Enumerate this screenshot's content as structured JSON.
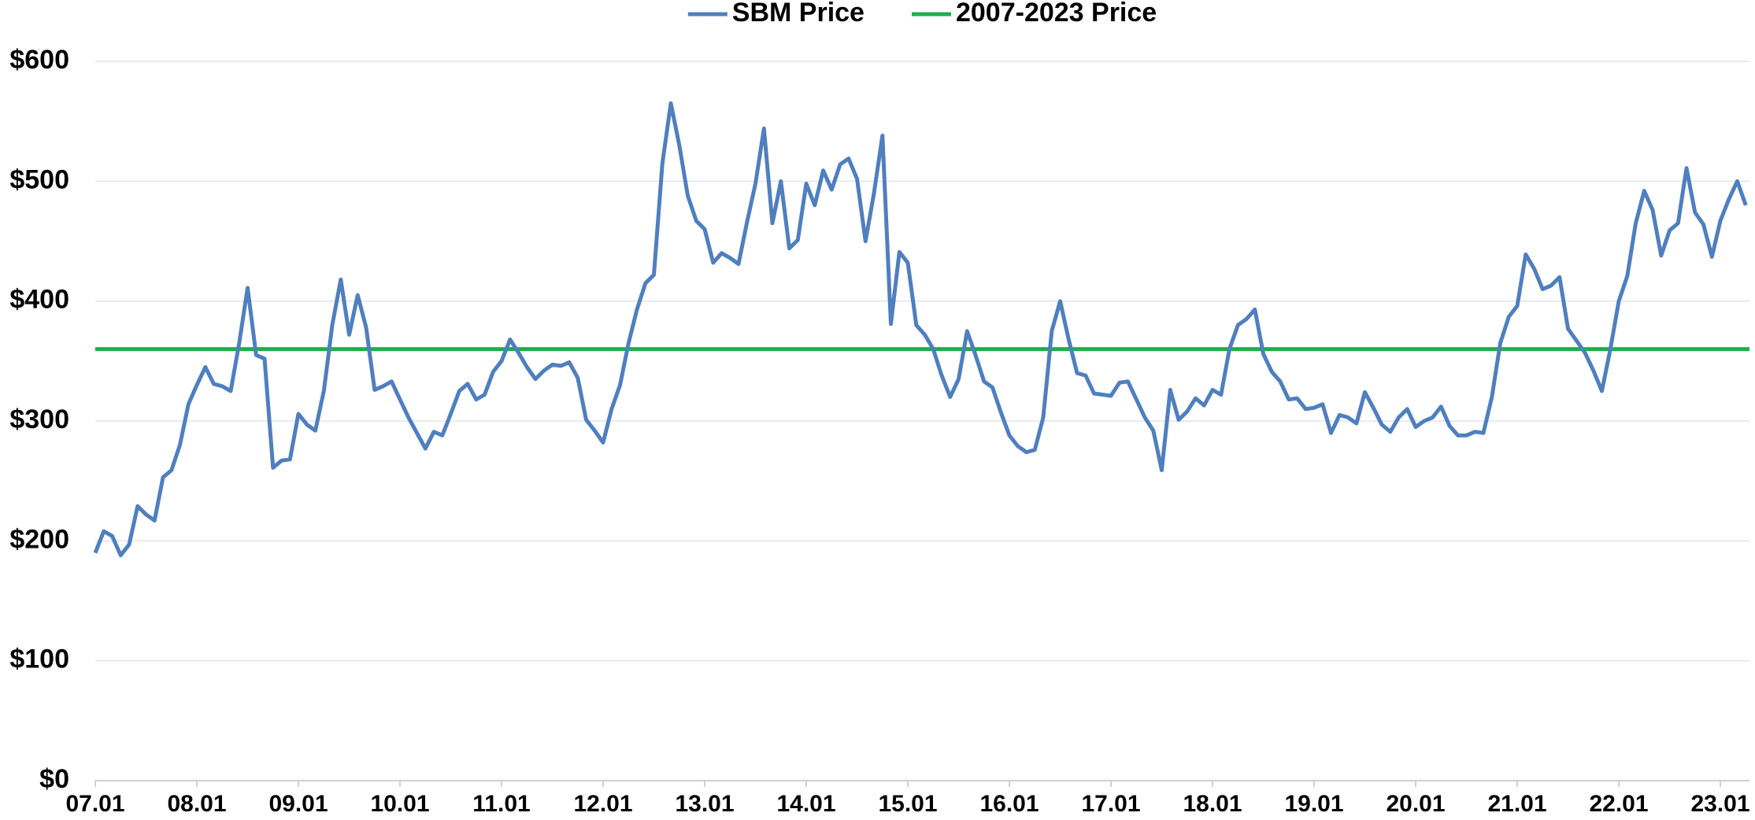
{
  "chart_data": {
    "type": "line",
    "categories": [
      "07.01",
      null,
      null,
      null,
      null,
      null,
      null,
      null,
      null,
      null,
      null,
      null,
      "08.01",
      null,
      null,
      null,
      null,
      null,
      null,
      null,
      null,
      null,
      null,
      null,
      "09.01",
      null,
      null,
      null,
      null,
      null,
      null,
      null,
      null,
      null,
      null,
      null,
      "10.01",
      null,
      null,
      null,
      null,
      null,
      null,
      null,
      null,
      null,
      null,
      null,
      "11.01",
      null,
      null,
      null,
      null,
      null,
      null,
      null,
      null,
      null,
      null,
      null,
      "12.01",
      null,
      null,
      null,
      null,
      null,
      null,
      null,
      null,
      null,
      null,
      null,
      "13.01",
      null,
      null,
      null,
      null,
      null,
      null,
      null,
      null,
      null,
      null,
      null,
      "14.01",
      null,
      null,
      null,
      null,
      null,
      null,
      null,
      null,
      null,
      null,
      null,
      "15.01",
      null,
      null,
      null,
      null,
      null,
      null,
      null,
      null,
      null,
      null,
      null,
      "16.01",
      null,
      null,
      null,
      null,
      null,
      null,
      null,
      null,
      null,
      null,
      null,
      "17.01",
      null,
      null,
      null,
      null,
      null,
      null,
      null,
      null,
      null,
      null,
      null,
      "18.01",
      null,
      null,
      null,
      null,
      null,
      null,
      null,
      null,
      null,
      null,
      null,
      "19.01",
      null,
      null,
      null,
      null,
      null,
      null,
      null,
      null,
      null,
      null,
      null,
      "20.01",
      null,
      null,
      null,
      null,
      null,
      null,
      null,
      null,
      null,
      null,
      null,
      "21.01",
      null,
      null,
      null,
      null,
      null,
      null,
      null,
      null,
      null,
      null,
      null,
      "22.01",
      null,
      null,
      null,
      null,
      null,
      null,
      null,
      null,
      null,
      null,
      null,
      "23.01",
      null,
      null,
      null
    ],
    "series": [
      {
        "name": "SBM Price",
        "color": "#4f7fbf",
        "values": [
          190,
          208,
          204,
          188,
          197,
          229,
          222,
          217,
          253,
          259,
          280,
          314,
          330,
          345,
          331,
          329,
          325,
          365,
          411,
          355,
          352,
          261,
          267,
          268,
          306,
          297,
          292,
          325,
          380,
          418,
          372,
          405,
          378,
          326,
          329,
          333,
          318,
          303,
          290,
          277,
          291,
          288,
          306,
          325,
          331,
          318,
          322,
          341,
          350,
          368,
          357,
          345,
          335,
          342,
          347,
          346,
          349,
          336,
          301,
          292,
          282,
          310,
          330,
          365,
          393,
          415,
          422,
          515,
          565,
          530,
          488,
          467,
          460,
          432,
          440,
          436,
          431,
          466,
          498,
          544,
          465,
          500,
          444,
          451,
          498,
          480,
          509,
          493,
          514,
          519,
          502,
          450,
          490,
          538,
          381,
          441,
          432,
          380,
          372,
          360,
          338,
          320,
          335,
          375,
          355,
          333,
          328,
          307,
          288,
          279,
          274,
          276,
          303,
          375,
          400,
          368,
          340,
          338,
          323,
          322,
          321,
          332,
          333,
          318,
          303,
          292,
          259,
          326,
          301,
          308,
          319,
          313,
          326,
          322,
          360,
          380,
          385,
          393,
          356,
          341,
          333,
          318,
          319,
          310,
          311,
          314,
          290,
          305,
          303,
          298,
          324,
          311,
          297,
          291,
          303,
          310,
          295,
          300,
          303,
          312,
          296,
          288,
          288,
          291,
          290,
          320,
          365,
          387,
          396,
          439,
          427,
          410,
          413,
          420,
          377,
          367,
          357,
          342,
          325,
          360,
          400,
          421,
          465,
          492,
          476,
          438,
          459,
          465,
          511,
          474,
          464,
          437,
          467,
          485,
          500,
          480
        ]
      }
    ],
    "hlines": [
      {
        "name": "2007-2023 Price",
        "color": "#1fad4a",
        "value": 360
      }
    ],
    "ylim": [
      0,
      600
    ],
    "yticks": [
      {
        "value": 0,
        "label": "$0"
      },
      {
        "value": 100,
        "label": "$100"
      },
      {
        "value": 200,
        "label": "$200"
      },
      {
        "value": 300,
        "label": "$300"
      },
      {
        "value": 400,
        "label": "$400"
      },
      {
        "value": 500,
        "label": "$500"
      },
      {
        "value": 600,
        "label": "$600"
      }
    ],
    "grid": true
  }
}
